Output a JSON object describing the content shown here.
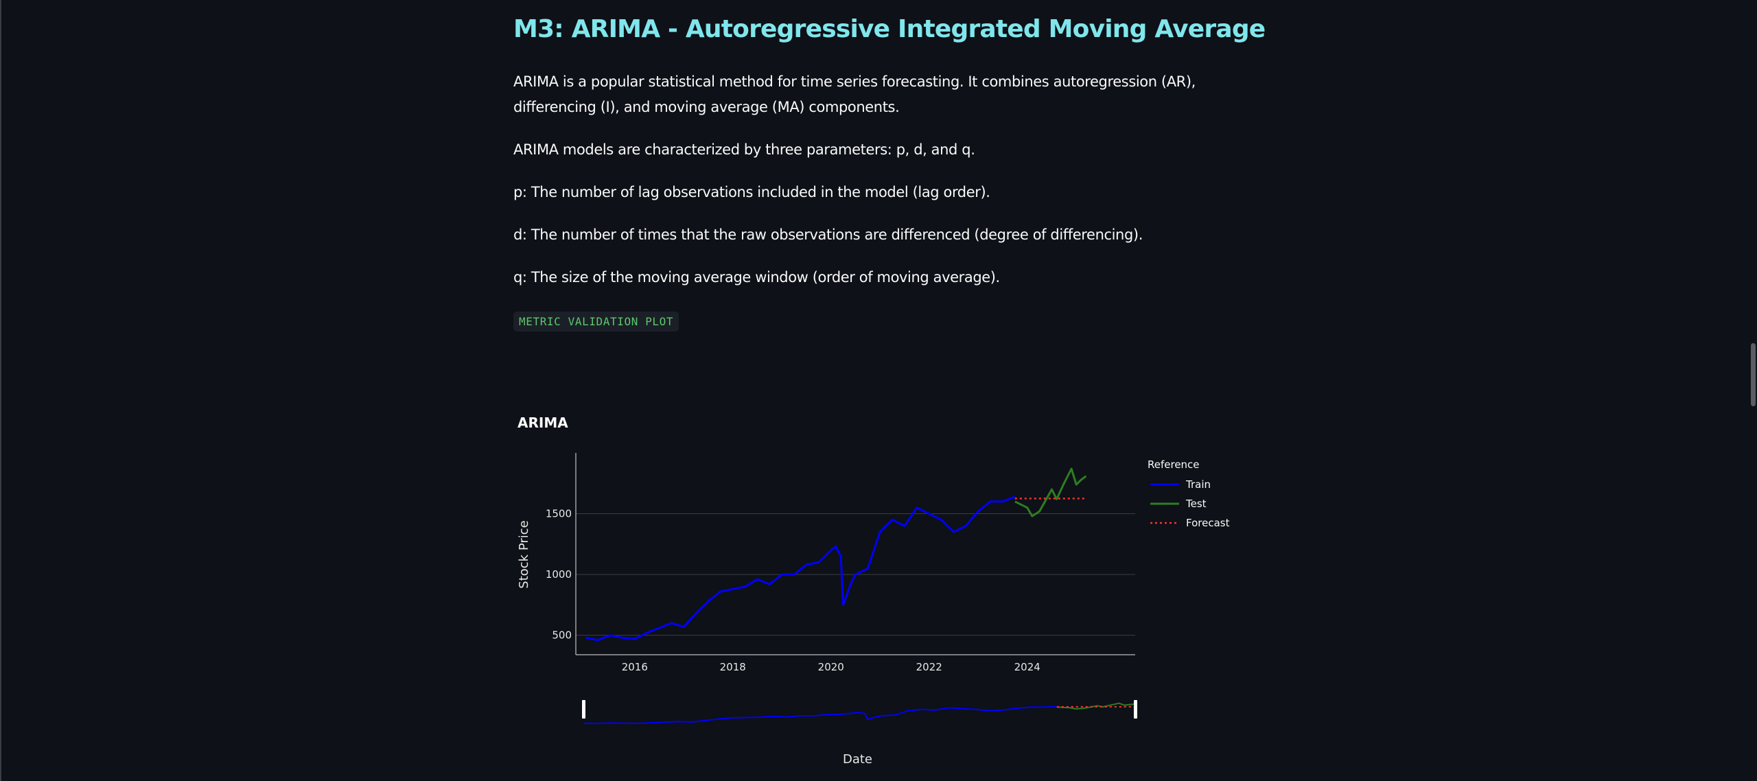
{
  "page": {
    "title": "M3: ARIMA - Autoregressive Integrated Moving Average",
    "paragraphs": [
      "ARIMA is a popular statistical method for time series forecasting. It combines autoregression (AR), differencing (I), and moving average (MA) components.",
      "ARIMA models are characterized by three parameters: p, d, and q.",
      "p: The number of lag observations included in the model (lag order).",
      "d: The number of times that the raw observations are differenced (degree of differencing).",
      "q: The size of the moving average window (order of moving average)."
    ],
    "code_label": "METRIC VALIDATION PLOT"
  },
  "chart_data": {
    "type": "line",
    "title": "ARIMA",
    "xlabel": "Date",
    "ylabel": "Stock Price",
    "xlim": [
      2014.8,
      2026.2
    ],
    "ylim": [
      340,
      2000
    ],
    "x_ticks": [
      2016,
      2018,
      2020,
      2022,
      2024
    ],
    "y_ticks": [
      500,
      1000,
      1500
    ],
    "grid": true,
    "legend": {
      "title": "Reference",
      "position": "right"
    },
    "range_slider": true,
    "colors": {
      "train": "#0000ff",
      "test": "#2e7d22",
      "forecast": "#ff3030"
    },
    "series": [
      {
        "name": "Train",
        "style": "solid",
        "x": [
          2015.0,
          2015.25,
          2015.5,
          2015.75,
          2016.0,
          2016.25,
          2016.5,
          2016.75,
          2017.0,
          2017.25,
          2017.5,
          2017.75,
          2018.0,
          2018.25,
          2018.5,
          2018.75,
          2019.0,
          2019.25,
          2019.5,
          2019.75,
          2020.0,
          2020.1,
          2020.2,
          2020.25,
          2020.4,
          2020.5,
          2020.75,
          2021.0,
          2021.25,
          2021.5,
          2021.75,
          2022.0,
          2022.25,
          2022.5,
          2022.75,
          2023.0,
          2023.25,
          2023.5,
          2023.75
        ],
        "values": [
          480,
          460,
          500,
          480,
          470,
          520,
          560,
          600,
          570,
          680,
          780,
          860,
          880,
          900,
          960,
          920,
          1000,
          1000,
          1080,
          1100,
          1200,
          1230,
          1150,
          750,
          920,
          1000,
          1050,
          1350,
          1450,
          1400,
          1550,
          1500,
          1450,
          1350,
          1400,
          1520,
          1600,
          1600,
          1640
        ]
      },
      {
        "name": "Test",
        "style": "solid",
        "x": [
          2023.75,
          2024.0,
          2024.1,
          2024.25,
          2024.5,
          2024.6,
          2024.75,
          2024.9,
          2025.0,
          2025.1,
          2025.2
        ],
        "values": [
          1600,
          1550,
          1480,
          1520,
          1700,
          1620,
          1750,
          1870,
          1740,
          1780,
          1810
        ]
      },
      {
        "name": "Forecast",
        "style": "dotted",
        "x": [
          2023.75,
          2025.2
        ],
        "values": [
          1625,
          1625
        ]
      }
    ]
  }
}
